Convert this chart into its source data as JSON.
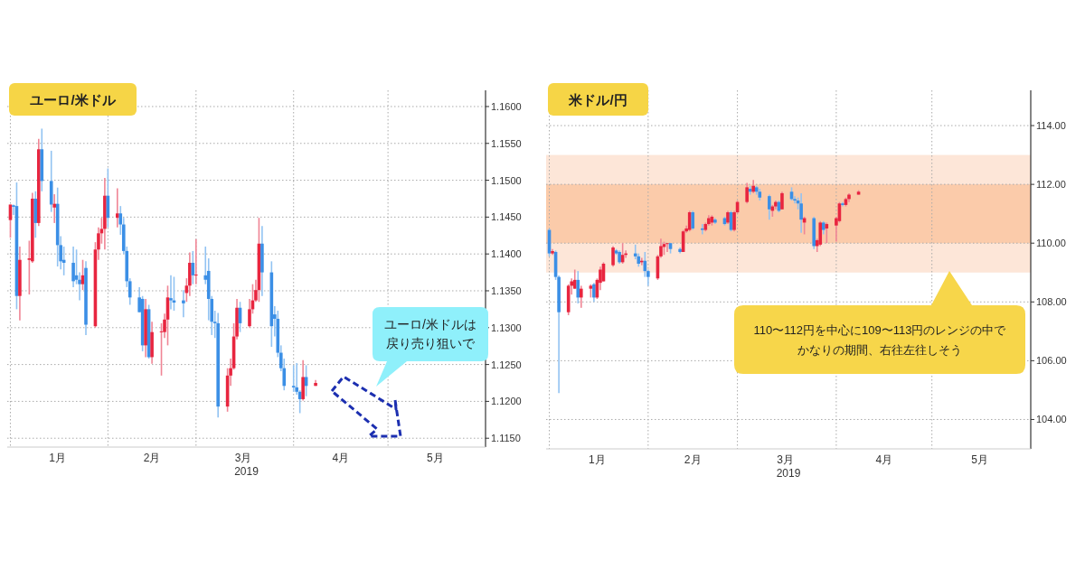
{
  "chart_data": [
    {
      "type": "candlestick",
      "title": "ユーロ/米ドル",
      "xlabel": "2019",
      "grid": true,
      "x": [
        "2019-01-01",
        "2019-01-02",
        "2019-01-03",
        "2019-01-04",
        "2019-01-07",
        "2019-01-08",
        "2019-01-09",
        "2019-01-10",
        "2019-01-11",
        "2019-01-14",
        "2019-01-15",
        "2019-01-16",
        "2019-01-17",
        "2019-01-18",
        "2019-01-21",
        "2019-01-22",
        "2019-01-23",
        "2019-01-24",
        "2019-01-25",
        "2019-01-28",
        "2019-01-29",
        "2019-01-30",
        "2019-01-31",
        "2019-02-01",
        "2019-02-04",
        "2019-02-05",
        "2019-02-06",
        "2019-02-07",
        "2019-02-08",
        "2019-02-11",
        "2019-02-12",
        "2019-02-13",
        "2019-02-14",
        "2019-02-15",
        "2019-02-18",
        "2019-02-19",
        "2019-02-20",
        "2019-02-21",
        "2019-02-22",
        "2019-02-25",
        "2019-02-26",
        "2019-02-27",
        "2019-02-28",
        "2019-03-01",
        "2019-03-04",
        "2019-03-05",
        "2019-03-06",
        "2019-03-07",
        "2019-03-08",
        "2019-03-11",
        "2019-03-12",
        "2019-03-13",
        "2019-03-14",
        "2019-03-15",
        "2019-03-18",
        "2019-03-19",
        "2019-03-20",
        "2019-03-21",
        "2019-03-22",
        "2019-03-25",
        "2019-03-26",
        "2019-03-27",
        "2019-03-28",
        "2019-03-29",
        "2019-04-01",
        "2019-04-02",
        "2019-04-03",
        "2019-04-04",
        "2019-04-05",
        "2019-04-08"
      ],
      "ohlc": [
        [
          1.1446,
          1.1467,
          1.1422,
          1.1467
        ],
        [
          1.1466,
          1.1467,
          1.1453,
          1.1464
        ],
        [
          1.1465,
          1.1497,
          1.1325,
          1.1343
        ],
        [
          1.1343,
          1.141,
          1.131,
          1.1392
        ],
        [
          1.1392,
          1.1418,
          1.1345,
          1.1394
        ],
        [
          1.139,
          1.1483,
          1.1388,
          1.1475
        ],
        [
          1.1475,
          1.1485,
          1.1422,
          1.1442
        ],
        [
          1.1442,
          1.1556,
          1.1438,
          1.1542
        ],
        [
          1.1542,
          1.157,
          1.1485,
          1.1499
        ],
        [
          1.1499,
          1.154,
          1.1457,
          1.1467
        ],
        [
          1.1463,
          1.1481,
          1.1442,
          1.1468
        ],
        [
          1.1468,
          1.149,
          1.1383,
          1.1412
        ],
        [
          1.1412,
          1.1424,
          1.1379,
          1.139
        ],
        [
          1.1392,
          1.141,
          1.1371,
          1.1388
        ],
        [
          1.1388,
          1.141,
          1.1355,
          1.1363
        ],
        [
          1.1371,
          1.1406,
          1.1359,
          1.1365
        ],
        [
          1.1365,
          1.1375,
          1.1337,
          1.1359
        ],
        [
          1.1359,
          1.1392,
          1.1351,
          1.1371
        ],
        [
          1.1381,
          1.139,
          1.129,
          1.1304
        ],
        [
          1.1302,
          1.1416,
          1.13,
          1.1406
        ],
        [
          1.1406,
          1.1436,
          1.1392,
          1.1428
        ],
        [
          1.1428,
          1.1449,
          1.1414,
          1.1434
        ],
        [
          1.1434,
          1.1503,
          1.1406,
          1.1479
        ],
        [
          1.1479,
          1.1516,
          1.1436,
          1.1449
        ],
        [
          1.1449,
          1.1489,
          1.1436,
          1.1455
        ],
        [
          1.1455,
          1.1465,
          1.1426,
          1.144
        ],
        [
          1.144,
          1.1449,
          1.14,
          1.1404
        ],
        [
          1.1404,
          1.141,
          1.1355,
          1.1363
        ],
        [
          1.1363,
          1.1367,
          1.1331,
          1.1341
        ],
        [
          1.1341,
          1.1355,
          1.1321,
          1.1321
        ],
        [
          1.1339,
          1.1343,
          1.1268,
          1.1276
        ],
        [
          1.1276,
          1.1339,
          1.126,
          1.1325
        ],
        [
          1.1325,
          1.1331,
          1.1258,
          1.126
        ],
        [
          1.126,
          1.1308,
          1.1251,
          1.1294
        ],
        [
          1.1294,
          1.1306,
          1.1235,
          1.1295
        ],
        [
          1.1294,
          1.1319,
          1.1286,
          1.1311
        ],
        [
          1.1311,
          1.1357,
          1.1276,
          1.1341
        ],
        [
          1.134,
          1.1371,
          1.1325,
          1.1337
        ],
        [
          1.1337,
          1.1369,
          1.1323,
          1.1334
        ],
        [
          1.1337,
          1.1351,
          1.1314,
          1.1333
        ],
        [
          1.1347,
          1.1367,
          1.1335,
          1.1357
        ],
        [
          1.1357,
          1.1402,
          1.1343,
          1.1388
        ],
        [
          1.1388,
          1.1404,
          1.1359,
          1.1371
        ],
        [
          1.1371,
          1.142,
          1.1359,
          1.1372
        ],
        [
          1.1371,
          1.141,
          1.1359,
          1.1365
        ],
        [
          1.1377,
          1.1394,
          1.131,
          1.1339
        ],
        [
          1.1339,
          1.1343,
          1.129,
          1.1308
        ],
        [
          1.1308,
          1.1323,
          1.1286,
          1.1306
        ],
        [
          1.1306,
          1.132,
          1.1178,
          1.1193
        ],
        [
          1.1193,
          1.1245,
          1.1186,
          1.1235
        ],
        [
          1.1235,
          1.1258,
          1.1221,
          1.1245
        ],
        [
          1.1245,
          1.1306,
          1.1243,
          1.1288
        ],
        [
          1.1288,
          1.1339,
          1.1284,
          1.1327
        ],
        [
          1.1327,
          1.1335,
          1.1294,
          1.1306
        ],
        [
          1.1302,
          1.1339,
          1.13,
          1.1325
        ],
        [
          1.1325,
          1.1359,
          1.1319,
          1.1337
        ],
        [
          1.1337,
          1.1365,
          1.1335,
          1.1351
        ],
        [
          1.1351,
          1.1449,
          1.1335,
          1.1414
        ],
        [
          1.1414,
          1.1438,
          1.1343,
          1.1375
        ],
        [
          1.1375,
          1.139,
          1.1274,
          1.1302
        ],
        [
          1.1318,
          1.1329,
          1.1288,
          1.1312
        ],
        [
          1.1312,
          1.1323,
          1.126,
          1.1266
        ],
        [
          1.1266,
          1.1276,
          1.1241,
          1.1245
        ],
        [
          1.1245,
          1.1258,
          1.1215,
          1.1221
        ],
        [
          1.1221,
          1.1249,
          1.1213,
          1.1219
        ],
        [
          1.1219,
          1.1252,
          1.1209,
          1.1213
        ],
        [
          1.1213,
          1.1215,
          1.1184,
          1.1203
        ],
        [
          1.1203,
          1.1256,
          1.1201,
          1.1233
        ],
        [
          1.1233,
          1.1249,
          1.1207,
          1.1221
        ],
        [
          1.1221,
          1.1229,
          1.1221,
          1.1225
        ]
      ],
      "xlim": [
        "2018-12-31",
        "2019-06-01"
      ],
      "xticks": [
        {
          "value": "2019-01-01",
          "label": null
        },
        {
          "value": "2019-01-16",
          "label": "1月"
        },
        {
          "value": "2019-02-01",
          "label": null
        },
        {
          "value": "2019-02-15",
          "label": "2月"
        },
        {
          "value": "2019-03-01",
          "label": null
        },
        {
          "value": "2019-03-16",
          "label": "3月"
        },
        {
          "value": "2019-04-01",
          "label": null
        },
        {
          "value": "2019-04-16",
          "label": "4月"
        },
        {
          "value": "2019-05-01",
          "label": null
        },
        {
          "value": "2019-05-16",
          "label": "5月"
        }
      ],
      "ylim": [
        1.1138,
        1.1622
      ],
      "yticks": [
        {
          "value": 1.115,
          "label": "1.1150"
        },
        {
          "value": 1.12,
          "label": "1.1200"
        },
        {
          "value": 1.125,
          "label": "1.1250"
        },
        {
          "value": 1.13,
          "label": "1.1300"
        },
        {
          "value": 1.135,
          "label": "1.1350"
        },
        {
          "value": 1.14,
          "label": "1.1400"
        },
        {
          "value": 1.145,
          "label": "1.1450"
        },
        {
          "value": 1.15,
          "label": "1.1500"
        },
        {
          "value": 1.155,
          "label": "1.1550"
        },
        {
          "value": 1.16,
          "label": "1.1600"
        }
      ],
      "annotations": [
        "ユーロ/米ドルは",
        "戻り売り狙いで"
      ]
    },
    {
      "type": "candlestick",
      "title": "米ドル/円",
      "xlabel": "2019",
      "grid": true,
      "x": [
        "2019-01-01",
        "2019-01-02",
        "2019-01-03",
        "2019-01-04",
        "2019-01-07",
        "2019-01-08",
        "2019-01-09",
        "2019-01-10",
        "2019-01-11",
        "2019-01-14",
        "2019-01-15",
        "2019-01-16",
        "2019-01-17",
        "2019-01-18",
        "2019-01-21",
        "2019-01-22",
        "2019-01-23",
        "2019-01-24",
        "2019-01-25",
        "2019-01-28",
        "2019-01-29",
        "2019-01-30",
        "2019-01-31",
        "2019-02-01",
        "2019-02-04",
        "2019-02-05",
        "2019-02-06",
        "2019-02-07",
        "2019-02-08",
        "2019-02-11",
        "2019-02-12",
        "2019-02-13",
        "2019-02-14",
        "2019-02-15",
        "2019-02-18",
        "2019-02-19",
        "2019-02-20",
        "2019-02-21",
        "2019-02-22",
        "2019-02-25",
        "2019-02-26",
        "2019-02-27",
        "2019-02-28",
        "2019-03-01",
        "2019-03-04",
        "2019-03-05",
        "2019-03-06",
        "2019-03-07",
        "2019-03-08",
        "2019-03-11",
        "2019-03-12",
        "2019-03-13",
        "2019-03-14",
        "2019-03-15",
        "2019-03-18",
        "2019-03-19",
        "2019-03-20",
        "2019-03-21",
        "2019-03-22",
        "2019-03-25",
        "2019-03-26",
        "2019-03-27",
        "2019-03-28",
        "2019-03-29",
        "2019-04-01",
        "2019-04-02",
        "2019-04-03",
        "2019-04-04",
        "2019-04-05",
        "2019-04-08"
      ],
      "ohlc": [
        [
          110.45,
          110.5,
          109.55,
          109.65
        ],
        [
          109.65,
          109.8,
          109.6,
          109.73
        ],
        [
          109.7,
          109.75,
          108.75,
          108.85
        ],
        [
          108.85,
          108.9,
          104.9,
          107.65
        ],
        [
          107.65,
          108.6,
          107.55,
          108.55
        ],
        [
          108.55,
          108.8,
          108.25,
          108.7
        ],
        [
          108.45,
          109.1,
          108.45,
          108.75
        ],
        [
          108.75,
          109.05,
          107.95,
          108.15
        ],
        [
          108.15,
          108.55,
          107.8,
          108.45
        ],
        [
          108.45,
          108.6,
          108.15,
          108.55
        ],
        [
          108.6,
          108.65,
          108.0,
          108.15
        ],
        [
          108.15,
          108.8,
          108.1,
          108.75
        ],
        [
          108.65,
          109.2,
          108.4,
          109.1
        ],
        [
          108.7,
          109.35,
          108.7,
          109.3
        ],
        [
          109.25,
          109.9,
          109.2,
          109.85
        ],
        [
          109.75,
          109.8,
          109.6,
          109.65
        ],
        [
          109.7,
          109.75,
          109.3,
          109.35
        ],
        [
          109.35,
          110.0,
          109.3,
          109.6
        ],
        [
          109.6,
          109.75,
          109.5,
          109.65
        ],
        [
          109.65,
          109.95,
          109.45,
          109.55
        ],
        [
          109.55,
          109.65,
          109.2,
          109.3
        ],
        [
          109.35,
          109.5,
          109.25,
          109.4
        ],
        [
          109.4,
          109.7,
          108.85,
          109.05
        ],
        [
          109.05,
          109.1,
          108.55,
          108.85
        ],
        [
          108.8,
          109.6,
          108.75,
          109.55
        ],
        [
          109.55,
          110.15,
          109.5,
          109.9
        ],
        [
          109.87,
          110.05,
          109.6,
          109.97
        ],
        [
          109.97,
          110.0,
          109.7,
          110.0
        ],
        [
          110.0,
          110.0,
          109.65,
          109.8
        ],
        [
          109.8,
          109.85,
          109.65,
          109.7
        ],
        [
          109.7,
          110.45,
          109.7,
          110.4
        ],
        [
          110.4,
          110.6,
          110.35,
          110.5
        ],
        [
          110.45,
          111.1,
          110.4,
          111.05
        ],
        [
          111.05,
          111.1,
          110.45,
          110.5
        ],
        [
          110.5,
          110.65,
          110.3,
          110.45
        ],
        [
          110.45,
          110.7,
          110.4,
          110.65
        ],
        [
          110.65,
          110.95,
          110.6,
          110.85
        ],
        [
          110.7,
          110.95,
          110.6,
          110.9
        ],
        [
          110.8,
          110.85,
          110.65,
          110.7
        ],
        [
          110.85,
          110.9,
          110.6,
          110.65
        ],
        [
          110.7,
          111.1,
          110.65,
          111.05
        ],
        [
          111.05,
          111.1,
          110.4,
          110.45
        ],
        [
          110.45,
          111.1,
          110.4,
          111.05
        ],
        [
          111.05,
          111.45,
          111.0,
          111.4
        ],
        [
          111.4,
          112.05,
          111.35,
          111.9
        ],
        [
          111.85,
          111.95,
          111.65,
          111.75
        ],
        [
          111.75,
          112.15,
          111.7,
          111.95
        ],
        [
          111.9,
          111.95,
          111.65,
          111.75
        ],
        [
          111.75,
          111.85,
          111.45,
          111.55
        ],
        [
          111.6,
          111.65,
          110.8,
          111.15
        ],
        [
          111.1,
          111.3,
          110.9,
          111.25
        ],
        [
          111.25,
          111.45,
          111.15,
          111.4
        ],
        [
          111.4,
          111.45,
          111.05,
          111.1
        ],
        [
          111.15,
          111.75,
          111.15,
          111.7
        ],
        [
          111.75,
          111.9,
          111.45,
          111.5
        ],
        [
          111.5,
          111.6,
          111.35,
          111.45
        ],
        [
          111.45,
          111.55,
          111.15,
          111.35
        ],
        [
          111.35,
          111.7,
          110.35,
          110.8
        ],
        [
          110.7,
          110.9,
          110.3,
          110.85
        ],
        [
          110.85,
          110.9,
          109.8,
          109.9
        ],
        [
          109.9,
          110.15,
          109.7,
          110.1
        ],
        [
          109.95,
          110.75,
          109.9,
          110.7
        ],
        [
          110.7,
          110.75,
          110.3,
          110.45
        ],
        [
          110.5,
          110.7,
          110.0,
          110.65
        ],
        [
          110.6,
          110.9,
          110.05,
          110.85
        ],
        [
          110.75,
          111.4,
          110.7,
          111.35
        ],
        [
          111.35,
          111.4,
          111.25,
          111.3
        ],
        [
          111.3,
          111.55,
          111.25,
          111.5
        ],
        [
          111.5,
          111.7,
          111.4,
          111.65
        ],
        [
          111.65,
          111.8,
          111.65,
          111.75
        ]
      ],
      "xlim": [
        "2018-12-31",
        "2019-06-01"
      ],
      "xticks": [
        {
          "value": "2019-01-01",
          "label": null
        },
        {
          "value": "2019-01-16",
          "label": "1月"
        },
        {
          "value": "2019-02-01",
          "label": null
        },
        {
          "value": "2019-02-15",
          "label": "2月"
        },
        {
          "value": "2019-03-01",
          "label": null
        },
        {
          "value": "2019-03-16",
          "label": "3月"
        },
        {
          "value": "2019-04-01",
          "label": null
        },
        {
          "value": "2019-04-16",
          "label": "4月"
        },
        {
          "value": "2019-05-01",
          "label": null
        },
        {
          "value": "2019-05-16",
          "label": "5月"
        }
      ],
      "ylim": [
        103.0,
        115.2
      ],
      "yticks": [
        {
          "value": 104,
          "label": "104.00"
        },
        {
          "value": 106,
          "label": "106.00"
        },
        {
          "value": 108,
          "label": "108.00"
        },
        {
          "value": 110,
          "label": "110.00"
        },
        {
          "value": 112,
          "label": "112.00"
        },
        {
          "value": 114,
          "label": "114.00"
        }
      ],
      "bands": [
        {
          "axis": "y",
          "from": 109,
          "to": 113,
          "color": "#fde6d8"
        },
        {
          "axis": "y",
          "from": 110,
          "to": 112,
          "color": "#fbcbaa"
        }
      ],
      "annotations": [
        "110〜112円を中心に109〜113円のレンジの中で",
        "かなりの期間、右往左往しそう"
      ]
    }
  ]
}
